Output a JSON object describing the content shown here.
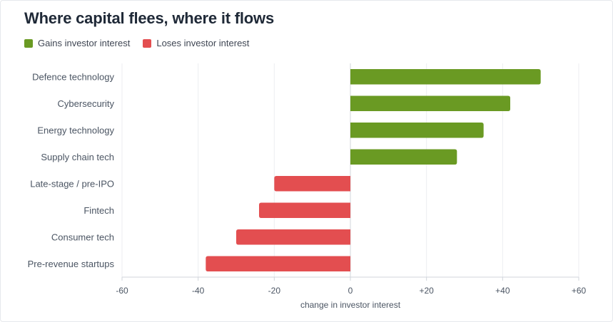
{
  "title": "Where capital flees, where it flows",
  "legend": {
    "gain_label": "Gains investor interest",
    "lose_label": "Loses investor interest"
  },
  "colors": {
    "gain": "#6a9a23",
    "lose": "#e34e50",
    "grid": "#eceef1",
    "axis": "#d1d5db"
  },
  "chart_data": {
    "type": "bar",
    "orientation": "horizontal",
    "title": "Where capital flees, where it flows",
    "xlabel": "change in investor interest",
    "ylabel": "",
    "xlim": [
      -60,
      60
    ],
    "x_ticks": [
      -60,
      -40,
      -20,
      0,
      20,
      40,
      60
    ],
    "x_tick_labels": [
      "-60",
      "-40",
      "-20",
      "0",
      "+20",
      "+40",
      "+60"
    ],
    "grid": true,
    "legend_position": "top-left",
    "categories": [
      "Defence technology",
      "Cybersecurity",
      "Energy technology",
      "Supply chain tech",
      "Late-stage / pre-IPO",
      "Fintech",
      "Consumer tech",
      "Pre-revenue startups"
    ],
    "values": [
      50,
      42,
      35,
      28,
      -20,
      -24,
      -30,
      -38
    ]
  }
}
